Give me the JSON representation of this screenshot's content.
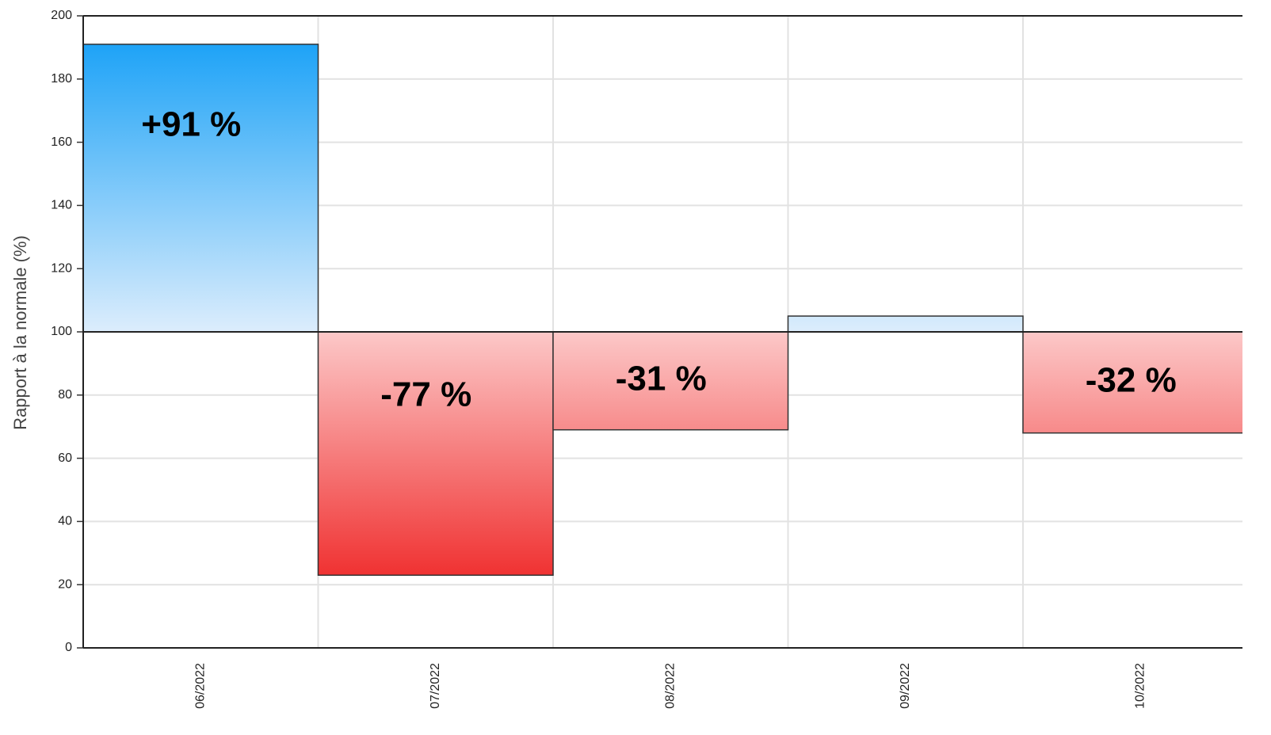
{
  "chart_data": {
    "type": "bar",
    "y_label": "Rapport à la normale (%)",
    "categories": [
      "06/2022",
      "07/2022",
      "08/2022",
      "09/2022",
      "10/2022"
    ],
    "values": [
      191,
      23,
      69,
      105,
      68
    ],
    "value_labels": [
      "+91 %",
      "-77 %",
      "-31 %",
      null,
      "-32 %"
    ],
    "baseline": 100,
    "colors": {
      "above": [
        "#1ea3f7",
        "#dcedfc"
      ],
      "below": [
        "#fcc8c8",
        "#f03232"
      ]
    },
    "ylim": [
      0,
      200
    ],
    "yticks": [
      0,
      20,
      40,
      60,
      80,
      100,
      120,
      140,
      160,
      180,
      200
    ],
    "grid": true
  }
}
